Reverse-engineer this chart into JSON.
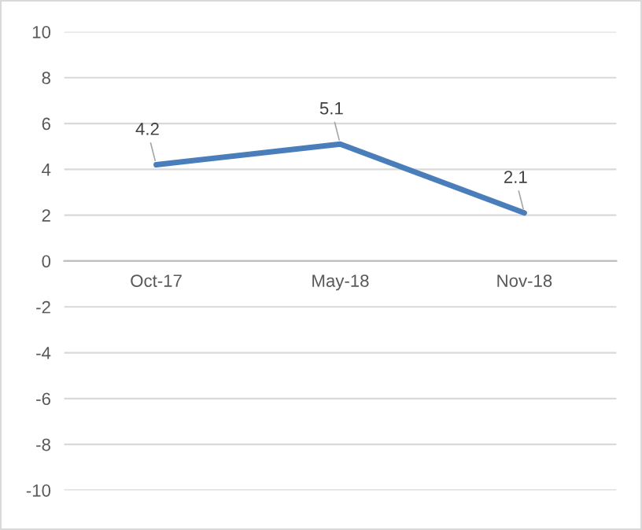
{
  "chart_data": {
    "type": "line",
    "categories": [
      "Oct-17",
      "May-18",
      "Nov-18"
    ],
    "values": [
      4.2,
      5.1,
      2.1
    ],
    "color": "#4a7ebb",
    "ylim": [
      -10,
      10
    ],
    "yticks": [
      -10,
      -8,
      -6,
      -4,
      -2,
      0,
      2,
      4,
      6,
      8,
      10
    ],
    "grid": "y",
    "data_labels": true
  }
}
